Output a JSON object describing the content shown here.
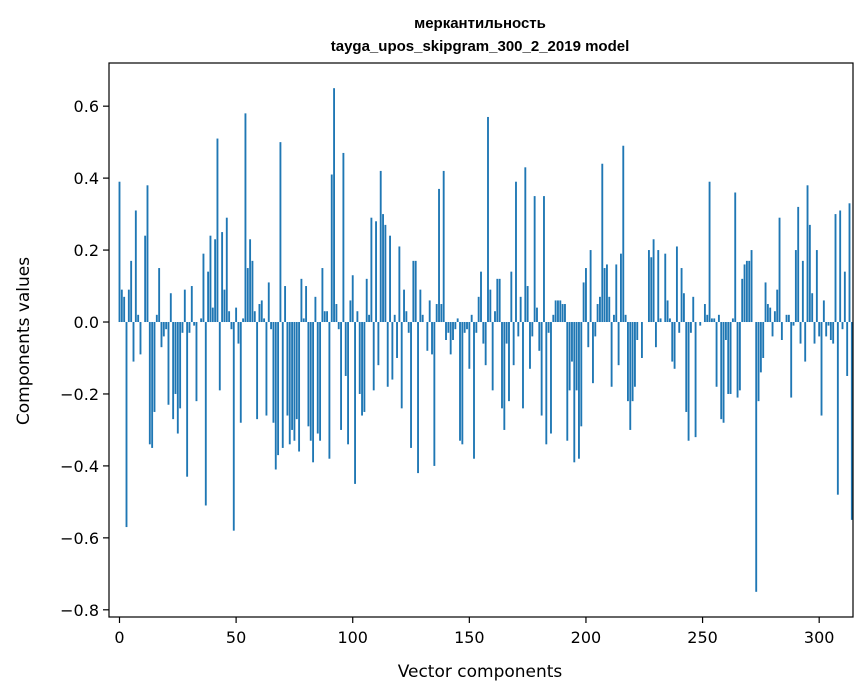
{
  "chart_data": {
    "type": "bar",
    "title": "меркантильность",
    "subtitle": "tayga_upos_skipgram_300_2_2019 model",
    "xlabel": "Vector components",
    "ylabel": "Components values",
    "xlim": [
      -4.5,
      314.5
    ],
    "ylim": [
      -0.82,
      0.72
    ],
    "xticks": [
      0,
      50,
      100,
      150,
      200,
      250,
      300
    ],
    "yticks": [
      -0.8,
      -0.6,
      -0.4,
      -0.2,
      0.0,
      0.2,
      0.4,
      0.6
    ],
    "ytick_labels": [
      "−0.8",
      "−0.6",
      "−0.4",
      "−0.2",
      "0.0",
      "0.2",
      "0.4",
      "0.6"
    ],
    "bar_color": "#1f77b4",
    "values": [
      0.39,
      0.09,
      0.07,
      -0.57,
      0.09,
      0.17,
      -0.11,
      0.31,
      0.02,
      -0.09,
      0.0,
      0.24,
      0.38,
      -0.34,
      -0.35,
      -0.25,
      0.02,
      0.15,
      -0.07,
      -0.04,
      -0.02,
      -0.23,
      0.08,
      -0.27,
      -0.2,
      -0.31,
      -0.24,
      -0.03,
      0.09,
      -0.43,
      -0.03,
      0.1,
      -0.01,
      -0.22,
      0.0,
      0.01,
      0.19,
      -0.51,
      0.14,
      0.24,
      0.04,
      0.23,
      0.51,
      -0.19,
      0.25,
      0.09,
      0.29,
      0.03,
      -0.02,
      -0.58,
      0.04,
      -0.06,
      -0.28,
      0.01,
      0.58,
      0.15,
      0.23,
      0.17,
      0.03,
      -0.27,
      0.05,
      0.06,
      0.01,
      -0.26,
      0.11,
      -0.02,
      -0.28,
      -0.41,
      -0.37,
      0.5,
      -0.35,
      0.1,
      -0.26,
      -0.34,
      -0.3,
      -0.33,
      -0.27,
      -0.36,
      0.12,
      0.01,
      0.1,
      -0.29,
      -0.33,
      -0.39,
      0.07,
      -0.31,
      -0.33,
      0.15,
      0.03,
      0.03,
      -0.38,
      0.41,
      0.65,
      0.05,
      -0.02,
      -0.3,
      0.47,
      -0.15,
      -0.34,
      0.06,
      0.13,
      -0.45,
      0.03,
      -0.2,
      -0.26,
      -0.25,
      0.12,
      0.02,
      0.29,
      -0.19,
      0.28,
      -0.12,
      0.42,
      0.3,
      0.27,
      -0.18,
      0.24,
      -0.16,
      0.02,
      -0.1,
      0.21,
      -0.24,
      0.09,
      0.03,
      -0.03,
      -0.35,
      0.17,
      0.17,
      -0.42,
      0.09,
      0.02,
      0.0,
      -0.08,
      0.06,
      -0.09,
      -0.4,
      0.05,
      0.37,
      0.05,
      0.42,
      -0.05,
      -0.03,
      -0.09,
      -0.05,
      -0.02,
      0.01,
      -0.33,
      -0.34,
      -0.03,
      -0.02,
      -0.13,
      0.02,
      -0.38,
      -0.03,
      0.07,
      0.14,
      -0.06,
      -0.12,
      0.57,
      0.09,
      -0.19,
      0.03,
      0.12,
      0.12,
      -0.24,
      -0.3,
      -0.06,
      -0.22,
      0.14,
      -0.12,
      0.39,
      -0.04,
      0.07,
      -0.24,
      0.43,
      0.1,
      -0.13,
      -0.04,
      0.35,
      0.04,
      -0.08,
      -0.26,
      0.35,
      -0.34,
      -0.03,
      -0.31,
      0.02,
      0.06,
      0.06,
      0.06,
      0.05,
      0.05,
      -0.33,
      -0.19,
      -0.11,
      -0.39,
      -0.19,
      -0.38,
      -0.29,
      0.11,
      0.15,
      -0.07,
      0.2,
      -0.17,
      -0.04,
      0.05,
      0.07,
      0.44,
      0.15,
      0.16,
      0.07,
      -0.18,
      0.02,
      0.16,
      -0.12,
      0.19,
      0.49,
      0.02,
      -0.22,
      -0.3,
      -0.22,
      -0.18,
      -0.05,
      0.0,
      -0.1,
      0.0,
      0.0,
      0.2,
      0.18,
      0.23,
      -0.07,
      0.2,
      0.01,
      0.0,
      0.19,
      0.06,
      0.01,
      -0.11,
      -0.13,
      0.21,
      -0.03,
      0.15,
      0.08,
      -0.25,
      -0.33,
      -0.03,
      0.07,
      -0.32,
      0.0,
      -0.01,
      0.0,
      0.05,
      0.02,
      0.39,
      0.01,
      0.01,
      -0.18,
      0.02,
      -0.27,
      -0.28,
      -0.05,
      -0.2,
      -0.2,
      0.01,
      0.36,
      -0.21,
      -0.19,
      0.12,
      0.16,
      0.17,
      0.17,
      0.2,
      0.0,
      -0.75,
      -0.22,
      -0.14,
      -0.1,
      0.11,
      0.05,
      0.04,
      -0.04,
      0.03,
      0.09,
      0.29,
      -0.05,
      0.0,
      0.02,
      0.02,
      -0.21,
      -0.01,
      0.2,
      0.32,
      -0.06,
      0.17,
      -0.11,
      0.38,
      0.27,
      0.08,
      -0.06,
      0.2,
      -0.04,
      -0.26,
      0.06,
      -0.04,
      -0.01,
      -0.05,
      -0.06,
      0.3,
      -0.48,
      0.31,
      -0.02,
      0.14,
      -0.15,
      0.33,
      -0.55
    ]
  }
}
